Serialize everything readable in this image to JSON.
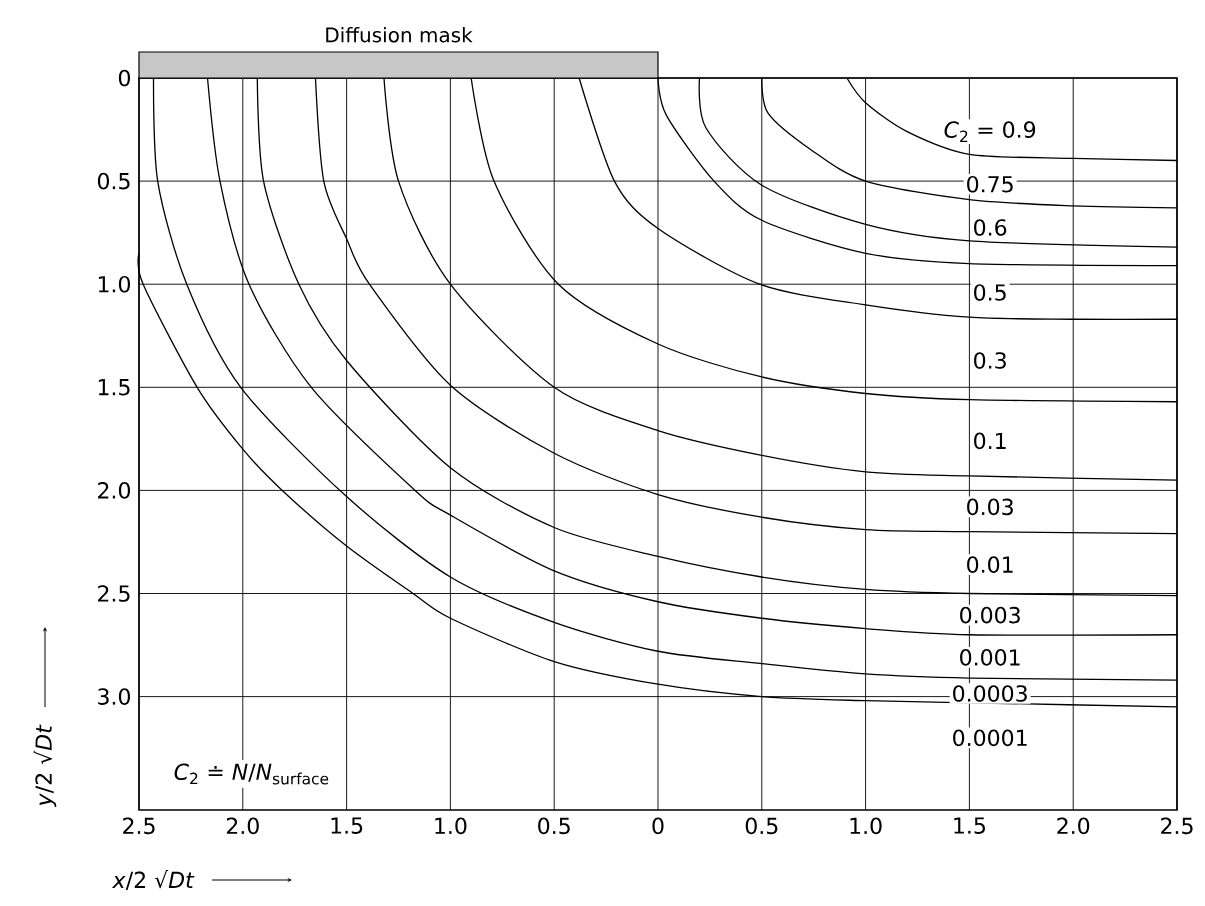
{
  "chart_data": {
    "type": "line",
    "xlabel": "*x*/2 √*Dt*",
    "ylabel": "*y*/2 √*Dt*",
    "annotations": [
      "Diffusion mask",
      "*C*$_{2}$ ≐ *N*/*N*$_{surface}$"
    ],
    "xlim": [
      -2.5,
      2.5
    ],
    "xticks": [
      {
        "value": -2.5,
        "label": "2.5"
      },
      {
        "value": -2,
        "label": "2.0"
      },
      {
        "value": -1.5,
        "label": "1.5"
      },
      {
        "value": -1,
        "label": "1.0"
      },
      {
        "value": -0.5,
        "label": "0.5"
      },
      0,
      0.5,
      {
        "value": 1,
        "label": "1.0"
      },
      1.5,
      {
        "value": 2,
        "label": "2.0"
      },
      2.5
    ],
    "ylim": [
      3.55,
      0
    ],
    "yticks": [
      0,
      0.5,
      {
        "value": 1,
        "label": "1.0"
      },
      1.5,
      {
        "value": 2,
        "label": "2.0"
      },
      2.5,
      {
        "value": 3,
        "label": "3.0"
      }
    ],
    "grid": true,
    "series": [
      {
        "name": "*C*$_{2}$ = 0.9",
        "color": "#000000",
        "x": [
          0.91,
          1.0,
          1.2,
          1.5,
          2.0,
          2.5
        ],
        "values": [
          0,
          0.12,
          0.26,
          0.37,
          0.39,
          0.4
        ]
      },
      {
        "name": "0.75",
        "color": "#000000",
        "x": [
          0.5,
          0.53,
          0.74,
          1.0,
          1.5,
          2.0,
          2.5
        ],
        "values": [
          0,
          0.17,
          0.35,
          0.5,
          0.59,
          0.62,
          0.63
        ]
      },
      {
        "name": "0.6",
        "color": "#000000",
        "x": [
          0.2,
          0.23,
          0.5,
          1.0,
          1.5,
          2.5
        ],
        "values": [
          0,
          0.24,
          0.52,
          0.71,
          0.79,
          0.82
        ]
      },
      {
        "name": "0.5",
        "color": "#000000",
        "x": [
          0,
          0.04,
          0.27,
          0.5,
          1.0,
          1.5,
          2.5
        ],
        "values": [
          0,
          0.18,
          0.5,
          0.69,
          0.85,
          0.9,
          0.91
        ]
      },
      {
        "name": "0.3",
        "color": "#000000",
        "x": [
          -0.38,
          -0.21,
          0,
          0.49,
          1.0,
          1.5,
          2.0,
          2.5
        ],
        "values": [
          0,
          0.5,
          0.73,
          1.0,
          1.1,
          1.16,
          1.17,
          1.17
        ]
      },
      {
        "name": "0.1",
        "color": "#000000",
        "x": [
          -0.9,
          -0.79,
          -0.48,
          0,
          0.5,
          1.0,
          1.5,
          2.5
        ],
        "values": [
          0,
          0.5,
          1.0,
          1.29,
          1.45,
          1.53,
          1.56,
          1.57
        ]
      },
      {
        "name": "0.03",
        "color": "#000000",
        "x": [
          -1.32,
          -1.25,
          -1.0,
          -0.5,
          0,
          0.5,
          1.0,
          1.5,
          2.5
        ],
        "values": [
          0,
          0.5,
          1.0,
          1.5,
          1.71,
          1.83,
          1.91,
          1.93,
          1.95
        ]
      },
      {
        "name": "0.01",
        "color": "#000000",
        "x": [
          -1.65,
          -1.61,
          -1.5,
          -1.39,
          -1.0,
          -0.5,
          0,
          0.5,
          1.0,
          1.5,
          2.5
        ],
        "values": [
          0,
          0.5,
          0.78,
          1.0,
          1.49,
          1.82,
          2.02,
          2.13,
          2.19,
          2.2,
          2.21
        ]
      },
      {
        "name": "0.003",
        "color": "#000000",
        "x": [
          -1.93,
          -1.9,
          -1.73,
          -1.5,
          -1.0,
          -0.5,
          0,
          0.5,
          1.0,
          1.5,
          2.5
        ],
        "values": [
          0,
          0.5,
          1.0,
          1.37,
          1.89,
          2.18,
          2.32,
          2.42,
          2.48,
          2.5,
          2.51
        ]
      },
      {
        "name": "0.001",
        "color": "#000000",
        "x": [
          -2.17,
          -2.11,
          -1.97,
          -1.67,
          -1.17,
          -1.0,
          -0.5,
          0,
          0.5,
          1.0,
          1.5,
          2.5
        ],
        "values": [
          0,
          0.5,
          1.0,
          1.5,
          2.0,
          2.12,
          2.39,
          2.54,
          2.62,
          2.67,
          2.7,
          2.7
        ]
      },
      {
        "name": "0.0003",
        "color": "#000000",
        "x": [
          -2.43,
          -2.41,
          -2.27,
          -2.01,
          -1.5,
          -1.0,
          -0.5,
          0,
          0.5,
          1.0,
          1.5,
          2.5
        ],
        "values": [
          0,
          0.5,
          1.0,
          1.5,
          2.03,
          2.42,
          2.64,
          2.78,
          2.84,
          2.89,
          2.91,
          2.92
        ]
      },
      {
        "name": "0.0001",
        "color": "#000000",
        "x": [
          -2.5,
          -2.48,
          -2.22,
          -2.0,
          -1.81,
          -1.5,
          -1.18,
          -1.0,
          -0.5,
          0,
          0.5,
          1.0,
          1.5,
          2.5
        ],
        "values": [
          0.85,
          1.0,
          1.5,
          1.8,
          2.0,
          2.27,
          2.5,
          2.62,
          2.83,
          2.94,
          3.0,
          3.02,
          3.03,
          3.05
        ]
      }
    ]
  }
}
